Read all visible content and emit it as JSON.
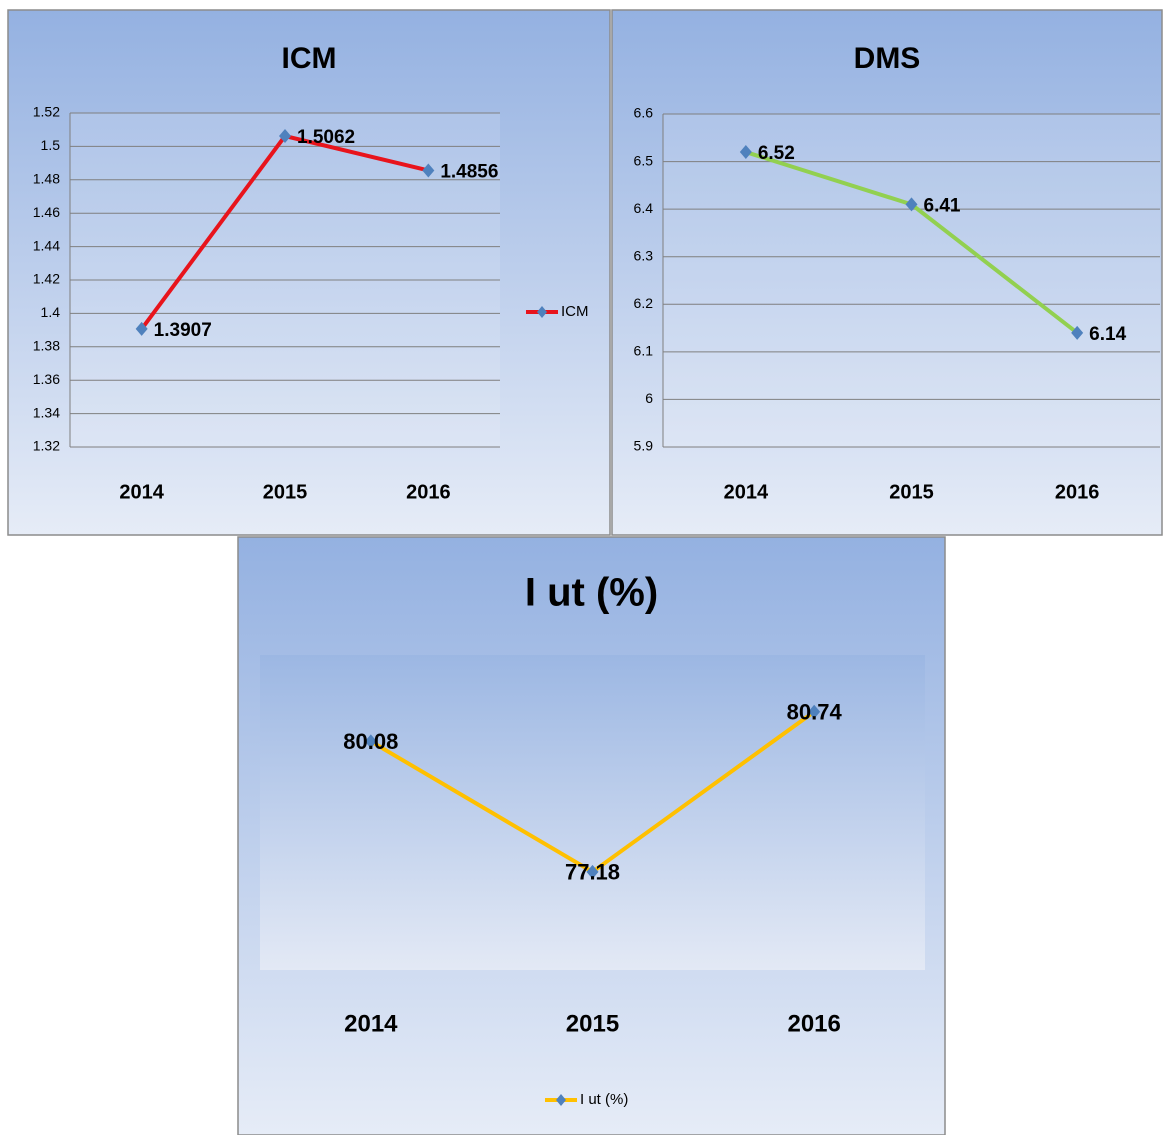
{
  "chart_data": [
    {
      "type": "line",
      "title": "ICM",
      "categories": [
        "2014",
        "2015",
        "2016"
      ],
      "series": [
        {
          "name": "ICM",
          "color": "#e8141c",
          "values": [
            1.3907,
            1.5062,
            1.4856
          ]
        }
      ],
      "ylim": [
        1.32,
        1.52
      ],
      "yticks": [
        1.32,
        1.34,
        1.36,
        1.38,
        1.4,
        1.42,
        1.44,
        1.46,
        1.48,
        1.5,
        1.52
      ],
      "grid": true,
      "legend": "right",
      "marker_color": "#4f81bd"
    },
    {
      "type": "line",
      "title": "DMS",
      "categories": [
        "2014",
        "2015",
        "2016"
      ],
      "series": [
        {
          "color": "#92d050",
          "values": [
            6.52,
            6.41,
            6.14
          ]
        }
      ],
      "ylim": [
        5.9,
        6.6
      ],
      "yticks": [
        5.9,
        6,
        6.1,
        6.2,
        6.3,
        6.4,
        6.5,
        6.6
      ],
      "grid": true,
      "marker_color": "#4f81bd"
    },
    {
      "type": "line",
      "title": "I ut (%)",
      "categories": [
        "2014",
        "2015",
        "2016"
      ],
      "series": [
        {
          "name": "I ut (%)",
          "color": "#ffc000",
          "values": [
            80.08,
            77.18,
            80.74
          ]
        }
      ],
      "ylim": [
        75,
        82
      ],
      "grid": false,
      "legend": "bottom",
      "marker_color": "#4f81bd"
    }
  ]
}
